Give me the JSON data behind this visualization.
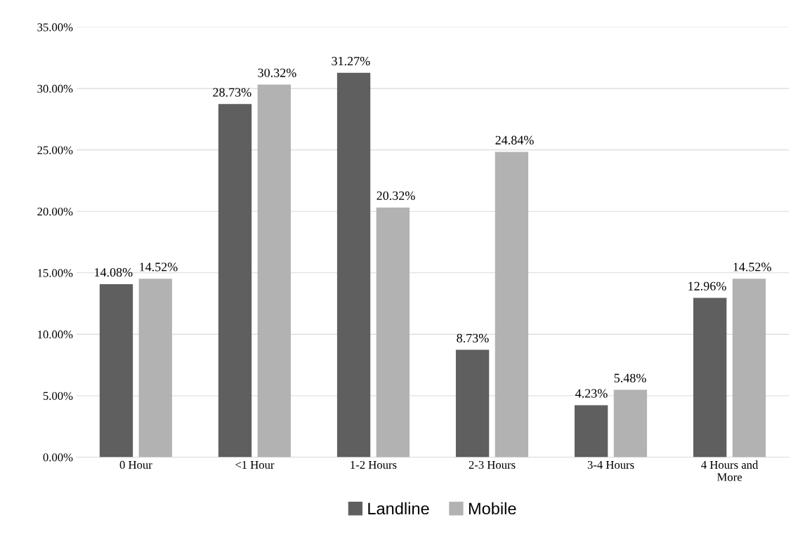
{
  "chart_data": {
    "type": "bar",
    "categories": [
      "0 Hour",
      "<1 Hour",
      "1-2 Hours",
      "2-3 Hours",
      "3-4 Hours",
      "4 Hours and\nMore"
    ],
    "series": [
      {
        "name": "Landline",
        "color": "#5f5f5f",
        "values": [
          14.08,
          28.73,
          31.27,
          8.73,
          4.23,
          12.96
        ],
        "value_labels": [
          "14.08%",
          "28.73%",
          "31.27%",
          "8.73%",
          "4.23%",
          "12.96%"
        ]
      },
      {
        "name": "Mobile",
        "color": "#b2b2b2",
        "values": [
          14.52,
          30.32,
          20.32,
          24.84,
          5.48,
          14.52
        ],
        "value_labels": [
          "14.52%",
          "30.32%",
          "20.32%",
          "24.84%",
          "5.48%",
          "14.52%"
        ]
      }
    ],
    "ylim": [
      0,
      35
    ],
    "yticks": [
      {
        "value": 0,
        "label": "0.00%"
      },
      {
        "value": 5,
        "label": "5.00%"
      },
      {
        "value": 10,
        "label": "10.00%"
      },
      {
        "value": 15,
        "label": "15.00%"
      },
      {
        "value": 20,
        "label": "20.00%"
      },
      {
        "value": 25,
        "label": "25.00%"
      },
      {
        "value": 30,
        "label": "30.00%"
      },
      {
        "value": 35,
        "label": "35.00%"
      }
    ],
    "grid": "y",
    "legend": "bottom"
  }
}
